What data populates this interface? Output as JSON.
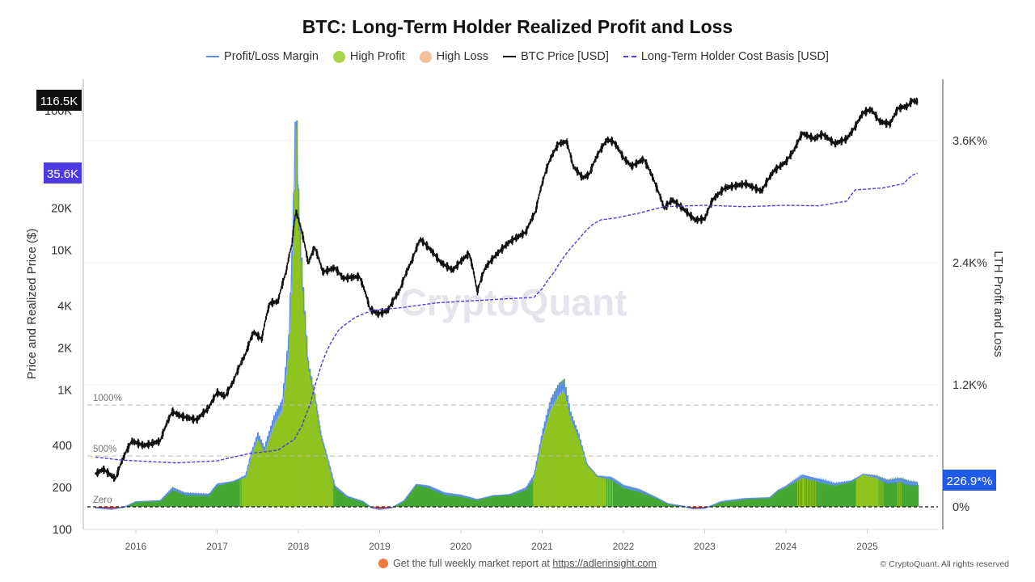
{
  "chart_data": {
    "type": "line",
    "title": "BTC: Long-Term Holder Realized Profit and Loss",
    "ylabel_left": "Price and Realized Price ($)",
    "ylabel_right": "LTH Profit and Loss",
    "watermark": "CryptoQuant",
    "left_axis": {
      "scale": "log",
      "range": [
        100,
        160000
      ],
      "ticks": [
        100,
        200,
        400,
        1000,
        2000,
        4000,
        10000,
        20000,
        100000
      ],
      "tick_labels": [
        "100",
        "200",
        "400",
        "1K",
        "2K",
        "4K",
        "10K",
        "20K",
        "100K"
      ]
    },
    "right_axis": {
      "scale": "linear",
      "range_percent": [
        -400,
        4000
      ],
      "ticks": [
        0,
        1200,
        2400,
        3600
      ],
      "tick_labels": [
        "0%",
        "1.2K%",
        "2.4K%",
        "3.6K%"
      ]
    },
    "x_axis": {
      "range": [
        2015.4,
        2025.9
      ],
      "ticks": [
        2016,
        2017,
        2018,
        2019,
        2020,
        2021,
        2022,
        2023,
        2024,
        2025
      ],
      "tick_labels": [
        "2016",
        "2017",
        "2018",
        "2019",
        "2020",
        "2021",
        "2022",
        "2023",
        "2024",
        "2025"
      ]
    },
    "reference_lines": [
      {
        "label": "1000%",
        "value": 1000
      },
      {
        "label": "500%",
        "value": 500
      },
      {
        "label": "Zero",
        "value": 0
      }
    ],
    "legend": [
      "Profit/Loss Margin",
      "High Profit",
      "High Loss",
      "BTC Price [USD]",
      "Long-Term Holder Cost Basis [USD]"
    ],
    "colors": {
      "margin_line": "#5b8def",
      "high_profit": "#8fc31f",
      "profit": "#44a832",
      "high_loss": "#f5c09c",
      "loss": "#e8412c",
      "price": "#111111",
      "cost_basis": "#4f3be6"
    },
    "last_values": {
      "price": "116.5K",
      "cost_basis": "35.6K",
      "margin": "226.9*%"
    },
    "series": [
      {
        "name": "BTC Price [USD]",
        "points": [
          [
            2015.5,
            250
          ],
          [
            2015.6,
            270
          ],
          [
            2015.75,
            230
          ],
          [
            2015.85,
            330
          ],
          [
            2015.95,
            430
          ],
          [
            2016.1,
            400
          ],
          [
            2016.3,
            430
          ],
          [
            2016.45,
            700
          ],
          [
            2016.55,
            650
          ],
          [
            2016.75,
            610
          ],
          [
            2016.9,
            750
          ],
          [
            2017.0,
            960
          ],
          [
            2017.1,
            900
          ],
          [
            2017.2,
            1150
          ],
          [
            2017.35,
            1800
          ],
          [
            2017.45,
            2600
          ],
          [
            2017.55,
            2300
          ],
          [
            2017.65,
            4200
          ],
          [
            2017.75,
            4300
          ],
          [
            2017.85,
            7000
          ],
          [
            2017.92,
            11000
          ],
          [
            2017.97,
            19000
          ],
          [
            2018.05,
            13000
          ],
          [
            2018.12,
            8000
          ],
          [
            2018.2,
            10500
          ],
          [
            2018.3,
            7000
          ],
          [
            2018.45,
            7500
          ],
          [
            2018.55,
            6300
          ],
          [
            2018.75,
            6500
          ],
          [
            2018.88,
            3800
          ],
          [
            2018.98,
            3500
          ],
          [
            2019.1,
            3700
          ],
          [
            2019.25,
            5200
          ],
          [
            2019.4,
            8500
          ],
          [
            2019.5,
            12000
          ],
          [
            2019.6,
            10500
          ],
          [
            2019.75,
            8200
          ],
          [
            2019.9,
            7200
          ],
          [
            2020.1,
            9500
          ],
          [
            2020.2,
            5000
          ],
          [
            2020.3,
            7500
          ],
          [
            2020.45,
            9500
          ],
          [
            2020.6,
            11500
          ],
          [
            2020.8,
            13500
          ],
          [
            2020.92,
            19000
          ],
          [
            2021.0,
            30000
          ],
          [
            2021.1,
            45000
          ],
          [
            2021.2,
            58000
          ],
          [
            2021.3,
            60000
          ],
          [
            2021.38,
            40000
          ],
          [
            2021.5,
            33000
          ],
          [
            2021.58,
            35000
          ],
          [
            2021.68,
            48000
          ],
          [
            2021.8,
            62000
          ],
          [
            2021.88,
            60000
          ],
          [
            2022.0,
            46000
          ],
          [
            2022.1,
            40000
          ],
          [
            2022.25,
            45000
          ],
          [
            2022.4,
            29000
          ],
          [
            2022.5,
            20000
          ],
          [
            2022.6,
            23000
          ],
          [
            2022.75,
            19500
          ],
          [
            2022.88,
            16500
          ],
          [
            2023.0,
            16800
          ],
          [
            2023.1,
            23000
          ],
          [
            2023.25,
            28000
          ],
          [
            2023.5,
            30000
          ],
          [
            2023.7,
            26500
          ],
          [
            2023.85,
            37000
          ],
          [
            2024.0,
            43000
          ],
          [
            2024.1,
            52000
          ],
          [
            2024.2,
            69000
          ],
          [
            2024.35,
            63000
          ],
          [
            2024.45,
            68000
          ],
          [
            2024.6,
            58000
          ],
          [
            2024.75,
            63000
          ],
          [
            2024.85,
            76000
          ],
          [
            2024.95,
            97000
          ],
          [
            2025.05,
            102000
          ],
          [
            2025.15,
            84000
          ],
          [
            2025.28,
            80000
          ],
          [
            2025.38,
            104000
          ],
          [
            2025.5,
            108000
          ],
          [
            2025.55,
            118000
          ],
          [
            2025.62,
            116500
          ]
        ]
      },
      {
        "name": "Long-Term Holder Cost Basis [USD]",
        "points": [
          [
            2015.5,
            330
          ],
          [
            2015.8,
            315
          ],
          [
            2016.0,
            310
          ],
          [
            2016.5,
            300
          ],
          [
            2017.0,
            310
          ],
          [
            2017.4,
            350
          ],
          [
            2017.75,
            370
          ],
          [
            2017.95,
            440
          ],
          [
            2018.05,
            560
          ],
          [
            2018.15,
            800
          ],
          [
            2018.25,
            1300
          ],
          [
            2018.35,
            1900
          ],
          [
            2018.5,
            2700
          ],
          [
            2018.7,
            3300
          ],
          [
            2018.9,
            3700
          ],
          [
            2019.3,
            3900
          ],
          [
            2019.7,
            4200
          ],
          [
            2020.3,
            4400
          ],
          [
            2020.9,
            4600
          ],
          [
            2021.0,
            5300
          ],
          [
            2021.15,
            7000
          ],
          [
            2021.3,
            9500
          ],
          [
            2021.45,
            12000
          ],
          [
            2021.6,
            15000
          ],
          [
            2021.72,
            16500
          ],
          [
            2021.9,
            17000
          ],
          [
            2022.2,
            18500
          ],
          [
            2022.5,
            20500
          ],
          [
            2023.0,
            21000
          ],
          [
            2023.5,
            20500
          ],
          [
            2024.0,
            21000
          ],
          [
            2024.4,
            20800
          ],
          [
            2024.75,
            22500
          ],
          [
            2024.85,
            27000
          ],
          [
            2025.2,
            28000
          ],
          [
            2025.45,
            30000
          ],
          [
            2025.55,
            34500
          ],
          [
            2025.62,
            35600
          ]
        ]
      },
      {
        "name": "Profit/Loss Margin",
        "unit": "%",
        "points": [
          [
            2015.5,
            -10
          ],
          [
            2015.7,
            -25
          ],
          [
            2015.85,
            -5
          ],
          [
            2016.0,
            50
          ],
          [
            2016.3,
            60
          ],
          [
            2016.45,
            180
          ],
          [
            2016.6,
            130
          ],
          [
            2016.9,
            120
          ],
          [
            2017.0,
            220
          ],
          [
            2017.2,
            250
          ],
          [
            2017.35,
            300
          ],
          [
            2017.42,
            520
          ],
          [
            2017.5,
            700
          ],
          [
            2017.58,
            560
          ],
          [
            2017.7,
            850
          ],
          [
            2017.8,
            1000
          ],
          [
            2017.88,
            1600
          ],
          [
            2017.93,
            2600
          ],
          [
            2017.97,
            3950
          ],
          [
            2018.0,
            3000
          ],
          [
            2018.05,
            2200
          ],
          [
            2018.12,
            1400
          ],
          [
            2018.2,
            1100
          ],
          [
            2018.28,
            700
          ],
          [
            2018.35,
            500
          ],
          [
            2018.45,
            200
          ],
          [
            2018.6,
            100
          ],
          [
            2018.8,
            50
          ],
          [
            2018.9,
            -10
          ],
          [
            2019.0,
            -25
          ],
          [
            2019.15,
            -10
          ],
          [
            2019.3,
            60
          ],
          [
            2019.45,
            220
          ],
          [
            2019.6,
            200
          ],
          [
            2019.8,
            130
          ],
          [
            2020.0,
            110
          ],
          [
            2020.2,
            70
          ],
          [
            2020.4,
            110
          ],
          [
            2020.6,
            120
          ],
          [
            2020.8,
            180
          ],
          [
            2020.9,
            300
          ],
          [
            2021.0,
            700
          ],
          [
            2021.1,
            1000
          ],
          [
            2021.2,
            1150
          ],
          [
            2021.27,
            1200
          ],
          [
            2021.35,
            900
          ],
          [
            2021.45,
            700
          ],
          [
            2021.55,
            420
          ],
          [
            2021.68,
            300
          ],
          [
            2021.85,
            280
          ],
          [
            2022.0,
            200
          ],
          [
            2022.2,
            160
          ],
          [
            2022.4,
            90
          ],
          [
            2022.55,
            30
          ],
          [
            2022.75,
            5
          ],
          [
            2022.85,
            -20
          ],
          [
            2023.0,
            -15
          ],
          [
            2023.2,
            50
          ],
          [
            2023.5,
            80
          ],
          [
            2023.8,
            90
          ],
          [
            2023.9,
            160
          ],
          [
            2024.0,
            200
          ],
          [
            2024.2,
            300
          ],
          [
            2024.4,
            260
          ],
          [
            2024.6,
            220
          ],
          [
            2024.8,
            250
          ],
          [
            2024.95,
            320
          ],
          [
            2025.1,
            300
          ],
          [
            2025.25,
            250
          ],
          [
            2025.4,
            270
          ],
          [
            2025.5,
            240
          ],
          [
            2025.62,
            227
          ]
        ]
      }
    ]
  },
  "footer": {
    "text": "Get the full weekly market report at ",
    "link": "https://adlerinsight.com",
    "copyright": "© CryptoQuant. All rights reserved"
  }
}
